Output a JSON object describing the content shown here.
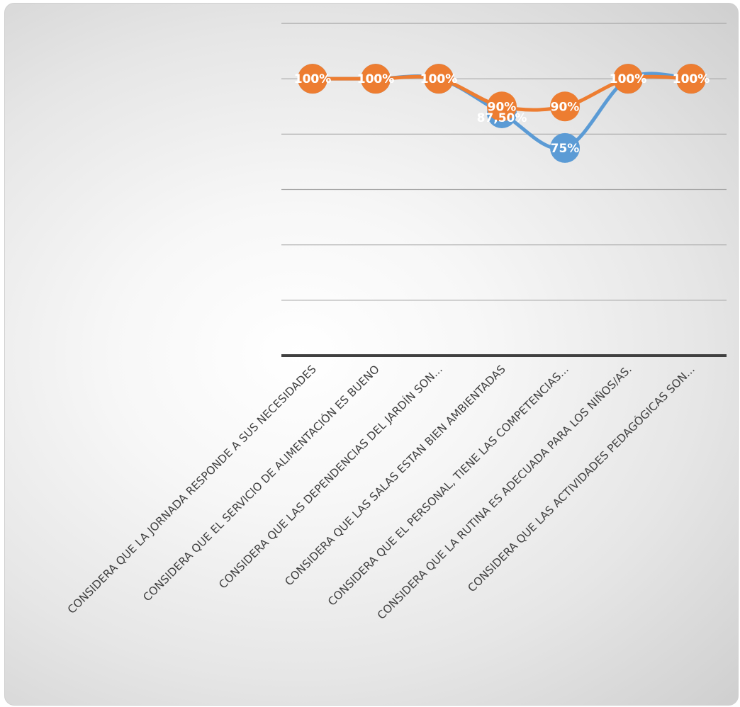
{
  "chart_data": {
    "type": "line",
    "title": "",
    "xlabel": "",
    "ylabel": "",
    "ylim": [
      0,
      1.2
    ],
    "grid": true,
    "smooth": true,
    "categories": [
      "CONSIDERA QUE LA JORNADA RESPONDE A SUS NECESIDADES",
      "CONSIDERA QUE EL SERVICIO DE ALIMENTACIÓN ES BUENO",
      "CONSIDERA QUE LAS DEPENDENCIAS DEL JARDÍN SON...",
      "CONSIDERA QUE LAS SALAS ESTAN BIEN AMBIENTADAS",
      "CONSIDERA QUE EL PERSONAL, TIENE LAS COMPETENCIAS...",
      "CONSIDERA QUE LA RUTINA ES ADECUADA PARA LOS NIÑOS/AS.",
      "CONSIDERA QUE LAS ACTIVIDADES PEDAGÓGICAS SON..."
    ],
    "series": [
      {
        "color": "#5b9bd5",
        "values": [
          1,
          1,
          1,
          0.875,
          0.75,
          1,
          1
        ],
        "labels": [
          "100%",
          "100%",
          "100%",
          "87,50%",
          "75%",
          "100%",
          "100%"
        ]
      },
      {
        "color": "#ed7d31",
        "values": [
          1,
          1,
          1,
          0.9,
          0.9,
          1,
          1
        ],
        "labels": [
          "100%",
          "100%",
          "100%",
          "90%",
          "90%",
          "100%",
          "100%"
        ]
      }
    ]
  }
}
